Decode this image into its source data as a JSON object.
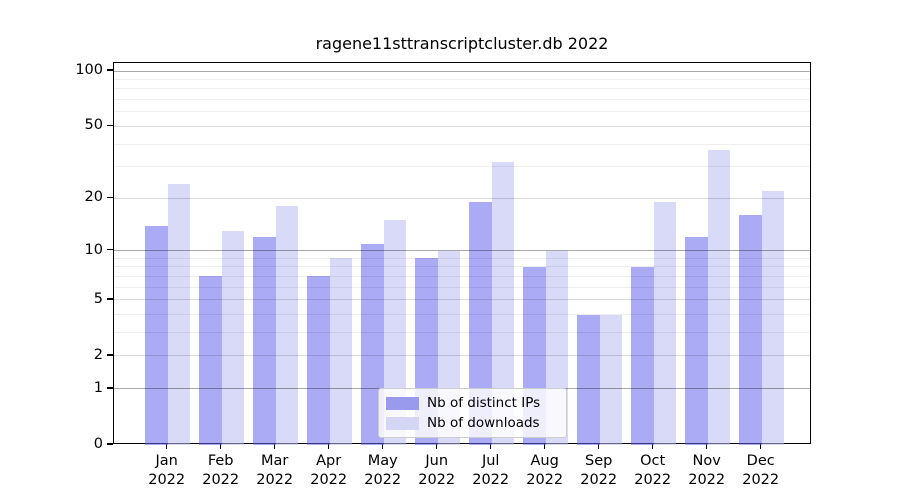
{
  "chart_data": {
    "type": "bar",
    "title": "ragene11sttranscriptcluster.db 2022",
    "categories": [
      "Jan 2022",
      "Feb 2022",
      "Mar 2022",
      "Apr 2022",
      "May 2022",
      "Jun 2022",
      "Jul 2022",
      "Aug 2022",
      "Sep 2022",
      "Oct 2022",
      "Nov 2022",
      "Dec 2022"
    ],
    "month_labels": [
      "Jan",
      "Feb",
      "Mar",
      "Apr",
      "May",
      "Jun",
      "Jul",
      "Aug",
      "Sep",
      "Oct",
      "Nov",
      "Dec"
    ],
    "year_label": "2022",
    "series": [
      {
        "name": "Nb of distinct IPs",
        "values": [
          14,
          7,
          12,
          7,
          11,
          9,
          19,
          8,
          4,
          8,
          12,
          16
        ],
        "bar_color": "rgba(100,100,237,0.55)",
        "legend_color": "#9999ee"
      },
      {
        "name": "Nb of downloads",
        "values": [
          24,
          13,
          18,
          9,
          15,
          10,
          32,
          10,
          4,
          19,
          37,
          22
        ],
        "bar_color": "rgba(186,186,242,0.55)",
        "legend_color": "#d5d5f5"
      }
    ],
    "y_axis": {
      "scale": "log1p",
      "ticks": [
        0,
        1,
        2,
        5,
        10,
        20,
        50,
        100
      ],
      "strong_gridlines": [
        1,
        10,
        100
      ],
      "medium_gridlines": [
        2,
        5,
        20,
        50
      ],
      "minor_gridlines": [
        3,
        4,
        6,
        7,
        8,
        9,
        30,
        40,
        60,
        70,
        80,
        90
      ],
      "range": [
        0,
        110
      ]
    },
    "legend": {
      "position": "lower center"
    },
    "grid": true
  }
}
